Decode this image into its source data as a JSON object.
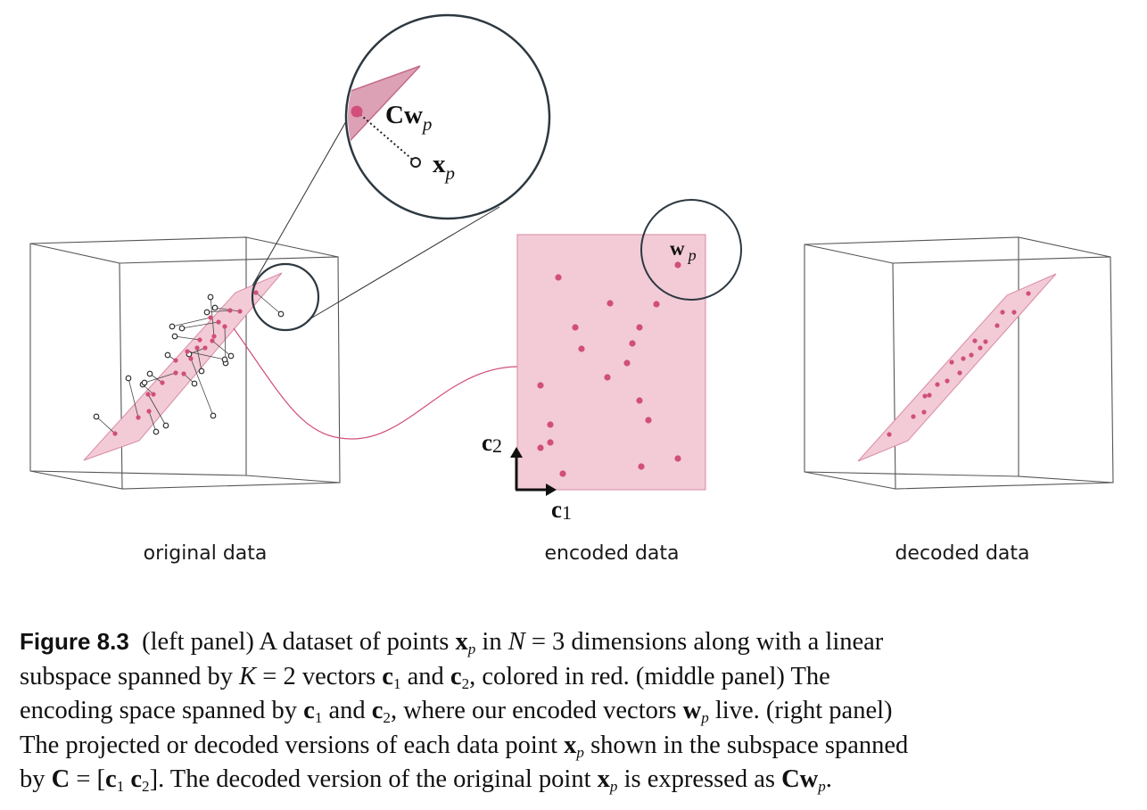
{
  "figure": {
    "accent_color": "#d14f7a",
    "fill_color": "#f2cbd7",
    "outline_color": "#444444",
    "panels": [
      {
        "id": "original",
        "label": "original data"
      },
      {
        "id": "encoded",
        "label": "encoded data"
      },
      {
        "id": "decoded",
        "label": "decoded data"
      }
    ],
    "zoom_labels": {
      "projection": "Cw",
      "point": "x",
      "subscript": "p"
    },
    "encoded_point_label": {
      "main": "w",
      "subscript": "p"
    },
    "axis_labels": {
      "c1_main": "c",
      "c1_sub": "1",
      "c2_main": "c",
      "c2_sub": "2"
    }
  },
  "caption": {
    "figure_number": "Figure 8.3",
    "lines": [
      [
        "(left panel) A dataset of points ",
        {
          "b": "x"
        },
        {
          "sub_i": "p"
        },
        " in ",
        {
          "i": "N"
        },
        " = 3 dimensions along with a linear"
      ],
      [
        "subspace spanned by ",
        {
          "i": "K"
        },
        " = 2 vectors ",
        {
          "b": "c"
        },
        {
          "sub": "1"
        },
        " and ",
        {
          "b": "c"
        },
        {
          "sub": "2"
        },
        ", colored in red. (middle panel) The"
      ],
      [
        "encoding space spanned by ",
        {
          "b": "c"
        },
        {
          "sub": "1"
        },
        " and ",
        {
          "b": "c"
        },
        {
          "sub": "2"
        },
        ", where our encoded vectors ",
        {
          "b": "w"
        },
        {
          "sub_i": "p"
        },
        " live. (right panel)"
      ],
      [
        "The projected or decoded versions of each data point ",
        {
          "b": "x"
        },
        {
          "sub_i": "p"
        },
        " shown in the subspace spanned"
      ],
      [
        "by ",
        {
          "b": "C"
        },
        " = [",
        {
          "b": "c"
        },
        {
          "sub": "1"
        },
        "  ",
        {
          "b": "c"
        },
        {
          "sub": "2"
        },
        "]. The decoded version of the original point ",
        {
          "b": "x"
        },
        {
          "sub_i": "p"
        },
        " is expressed as ",
        {
          "b": "Cw"
        },
        {
          "sub_i": "p"
        },
        "."
      ]
    ]
  }
}
